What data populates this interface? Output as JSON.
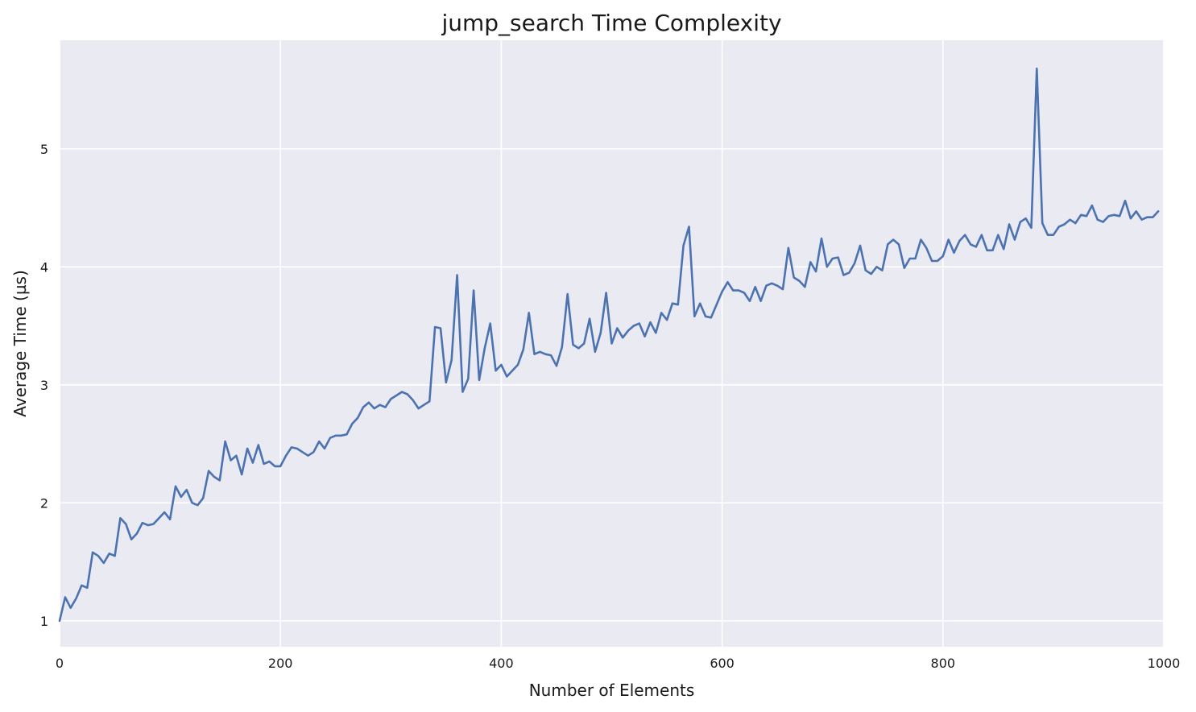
{
  "chart_data": {
    "type": "line",
    "title": "jump_search Time Complexity",
    "xlabel": "Number of Elements",
    "ylabel": "Average Time (µs)",
    "xlim": [
      0,
      1000
    ],
    "ylim": [
      0.78,
      5.92
    ],
    "xticks": [
      0,
      200,
      400,
      600,
      800,
      1000
    ],
    "yticks": [
      1,
      2,
      3,
      4,
      5
    ],
    "grid": true,
    "colors": {
      "background": "#EAEAF2",
      "grid": "#FFFFFF",
      "line": "#4C72B0"
    },
    "series": [
      {
        "color": "#4C72B0",
        "x": [
          0,
          5,
          10,
          15,
          20,
          25,
          30,
          35,
          40,
          45,
          50,
          55,
          60,
          65,
          70,
          75,
          80,
          85,
          90,
          95,
          100,
          105,
          110,
          115,
          120,
          125,
          130,
          135,
          140,
          145,
          150,
          155,
          160,
          165,
          170,
          175,
          180,
          185,
          190,
          195,
          200,
          205,
          210,
          215,
          220,
          225,
          230,
          235,
          240,
          245,
          250,
          255,
          260,
          265,
          270,
          275,
          280,
          285,
          290,
          295,
          300,
          305,
          310,
          315,
          320,
          325,
          330,
          335,
          340,
          345,
          350,
          355,
          360,
          365,
          370,
          375,
          380,
          385,
          390,
          395,
          400,
          405,
          410,
          415,
          420,
          425,
          430,
          435,
          440,
          445,
          450,
          455,
          460,
          465,
          470,
          475,
          480,
          485,
          490,
          495,
          500,
          505,
          510,
          515,
          520,
          525,
          530,
          535,
          540,
          545,
          550,
          555,
          560,
          565,
          570,
          575,
          580,
          585,
          590,
          595,
          600,
          605,
          610,
          615,
          620,
          625,
          630,
          635,
          640,
          645,
          650,
          655,
          660,
          665,
          670,
          675,
          680,
          685,
          690,
          695,
          700,
          705,
          710,
          715,
          720,
          725,
          730,
          735,
          740,
          745,
          750,
          755,
          760,
          765,
          770,
          775,
          780,
          785,
          790,
          795,
          800,
          805,
          810,
          815,
          820,
          825,
          830,
          835,
          840,
          845,
          850,
          855,
          860,
          865,
          870,
          875,
          880,
          885,
          890,
          895,
          900,
          905,
          910,
          915,
          920,
          925,
          930,
          935,
          940,
          945,
          950,
          955,
          960,
          965,
          970,
          975,
          980,
          985,
          990,
          995
        ],
        "y": [
          1.0,
          1.2,
          1.11,
          1.19,
          1.3,
          1.28,
          1.58,
          1.55,
          1.49,
          1.57,
          1.55,
          1.87,
          1.82,
          1.69,
          1.74,
          1.83,
          1.81,
          1.82,
          1.87,
          1.92,
          1.86,
          2.14,
          2.05,
          2.11,
          2.0,
          1.98,
          2.04,
          2.27,
          2.22,
          2.19,
          2.52,
          2.36,
          2.4,
          2.24,
          2.46,
          2.34,
          2.49,
          2.33,
          2.35,
          2.31,
          2.31,
          2.4,
          2.47,
          2.46,
          2.43,
          2.4,
          2.43,
          2.52,
          2.46,
          2.55,
          2.57,
          2.57,
          2.58,
          2.67,
          2.72,
          2.81,
          2.85,
          2.8,
          2.83,
          2.81,
          2.88,
          2.91,
          2.94,
          2.92,
          2.87,
          2.8,
          2.83,
          2.86,
          3.49,
          3.48,
          3.02,
          3.21,
          3.93,
          2.94,
          3.05,
          3.8,
          3.04,
          3.31,
          3.52,
          3.12,
          3.17,
          3.07,
          3.12,
          3.17,
          3.3,
          3.61,
          3.26,
          3.28,
          3.26,
          3.25,
          3.16,
          3.32,
          3.77,
          3.34,
          3.31,
          3.35,
          3.56,
          3.28,
          3.44,
          3.78,
          3.35,
          3.48,
          3.4,
          3.46,
          3.5,
          3.52,
          3.41,
          3.53,
          3.44,
          3.61,
          3.55,
          3.69,
          3.68,
          4.18,
          4.34,
          3.58,
          3.69,
          3.58,
          3.57,
          3.68,
          3.79,
          3.87,
          3.8,
          3.8,
          3.78,
          3.71,
          3.83,
          3.71,
          3.84,
          3.86,
          3.84,
          3.81,
          4.16,
          3.91,
          3.88,
          3.83,
          4.04,
          3.96,
          4.24,
          4.0,
          4.07,
          4.08,
          3.93,
          3.95,
          4.03,
          4.18,
          3.97,
          3.94,
          4.0,
          3.97,
          4.19,
          4.23,
          4.19,
          3.99,
          4.07,
          4.07,
          4.23,
          4.16,
          4.05,
          4.05,
          4.09,
          4.23,
          4.12,
          4.22,
          4.27,
          4.19,
          4.17,
          4.27,
          4.14,
          4.14,
          4.27,
          4.15,
          4.36,
          4.23,
          4.38,
          4.41,
          4.33,
          5.68,
          4.37,
          4.27,
          4.27,
          4.34,
          4.36,
          4.4,
          4.37,
          4.44,
          4.43,
          4.52,
          4.4,
          4.38,
          4.43,
          4.44,
          4.43,
          4.56,
          4.41,
          4.47,
          4.4,
          4.42,
          4.42,
          4.47
        ]
      }
    ]
  }
}
